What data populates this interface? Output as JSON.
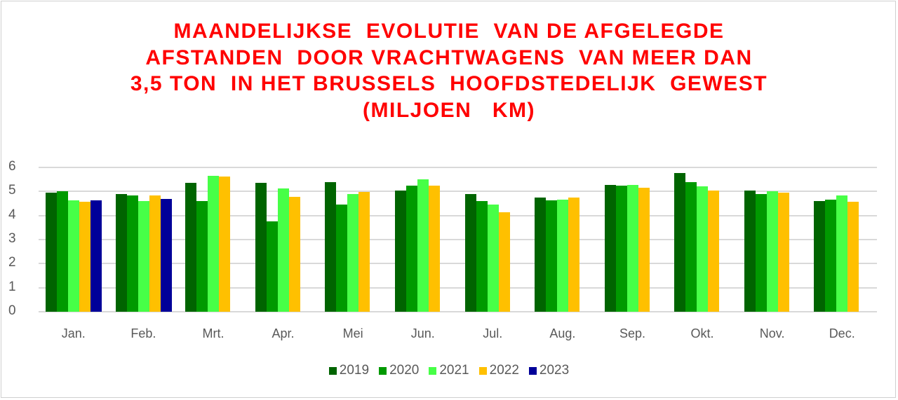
{
  "chart_data": {
    "type": "bar",
    "title": "MAANDELIJKSE EVOLUTIE VAN DE AFGELEGDE AFSTANDEN DOOR VRACHTWAGENS VAN MEER DAN 3,5 TON IN HET BRUSSELS HOOFDSTEDELIJK GEWEST (MILJOEN KM)",
    "title_lines": [
      "MAANDELIJKSE  EVOLUTIE  VAN DE AFGELEGDE",
      "AFSTANDEN  DOOR VRACHTWAGENS  VAN MEER DAN",
      "3,5 TON  IN HET BRUSSELS  HOOFDSTEDELIJK  GEWEST",
      "(MILJOEN   KM)"
    ],
    "xlabel": "",
    "ylabel": "",
    "ylim": [
      0,
      6
    ],
    "yticks": [
      "0",
      "1",
      "2",
      "3",
      "4",
      "5",
      "6"
    ],
    "grid": true,
    "legend_position": "bottom",
    "categories": [
      "Jan.",
      "Feb.",
      "Mrt.",
      "Apr.",
      "Mei",
      "Jun.",
      "Jul.",
      "Aug.",
      "Sep.",
      "Okt.",
      "Nov.",
      "Dec."
    ],
    "series": [
      {
        "name": "2019",
        "color": "#006400",
        "values": [
          4.94,
          4.9,
          5.36,
          5.35,
          5.38,
          5.05,
          4.89,
          4.74,
          5.28,
          5.76,
          5.05,
          4.6
        ]
      },
      {
        "name": "2020",
        "color": "#009900",
        "values": [
          5.01,
          4.83,
          4.59,
          3.76,
          4.45,
          5.24,
          4.6,
          4.64,
          5.23,
          5.38,
          4.9,
          4.66
        ]
      },
      {
        "name": "2021",
        "color": "#47FF47",
        "values": [
          4.64,
          4.59,
          5.66,
          5.12,
          4.89,
          5.51,
          4.45,
          4.67,
          5.28,
          5.2,
          5.01,
          4.83
        ]
      },
      {
        "name": "2022",
        "color": "#FFC000",
        "values": [
          4.57,
          4.83,
          5.62,
          4.78,
          4.98,
          5.24,
          4.15,
          4.75,
          5.16,
          5.05,
          4.95,
          4.56
        ]
      },
      {
        "name": "2023",
        "color": "#000099",
        "values": [
          4.64,
          4.68,
          null,
          null,
          null,
          null,
          null,
          null,
          null,
          null,
          null,
          null
        ]
      }
    ]
  }
}
